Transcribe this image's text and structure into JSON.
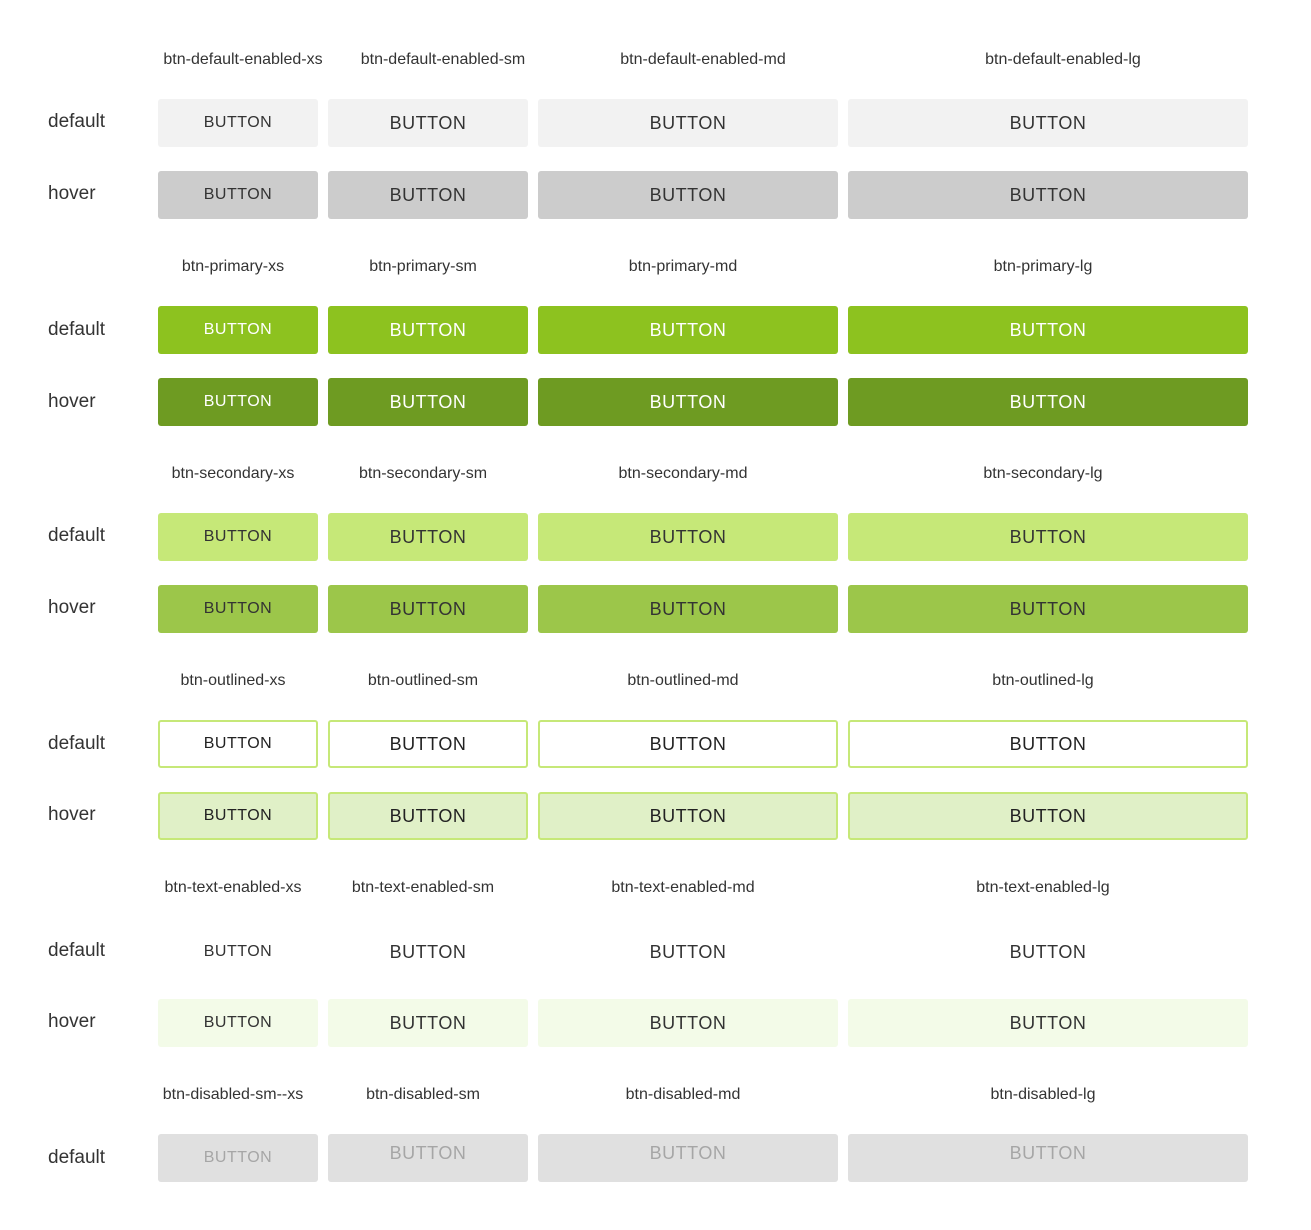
{
  "button_label": "BUTTON",
  "states": {
    "default": "default",
    "hover": "hover"
  },
  "groups": [
    {
      "key": "default",
      "headers": [
        "btn-default-enabled-xs",
        "btn-default-enabled-sm",
        "btn-default-enabled-md",
        "btn-default-enabled-lg"
      ]
    },
    {
      "key": "primary",
      "headers": [
        "btn-primary-xs",
        "btn-primary-sm",
        "btn-primary-md",
        "btn-primary-lg"
      ]
    },
    {
      "key": "secondary",
      "headers": [
        "btn-secondary-xs",
        "btn-secondary-sm",
        "btn-secondary-md",
        "btn-secondary-lg"
      ]
    },
    {
      "key": "outlined",
      "headers": [
        "btn-outlined-xs",
        "btn-outlined-sm",
        "btn-outlined-md",
        "btn-outlined-lg"
      ]
    },
    {
      "key": "text",
      "headers": [
        "btn-text-enabled-xs",
        "btn-text-enabled-sm",
        "btn-text-enabled-md",
        "btn-text-enabled-lg"
      ]
    },
    {
      "key": "disabled",
      "headers": [
        "btn-disabled-sm--xs",
        "btn-disabled-sm",
        "btn-disabled-md",
        "btn-disabled-lg"
      ]
    }
  ],
  "colors": {
    "default": "#f2f2f2",
    "default_hover": "#cccccc",
    "primary": "#8dc21f",
    "primary_hover": "#6e9b22",
    "secondary": "#c6e878",
    "secondary_hover": "#9cc64a",
    "outlined_border": "#c6e878",
    "outlined_hover": "#e0f0c7",
    "text_hover": "#f3fbe8",
    "disabled": "#e0e0e0",
    "disabled_text": "#a6a6a6"
  }
}
